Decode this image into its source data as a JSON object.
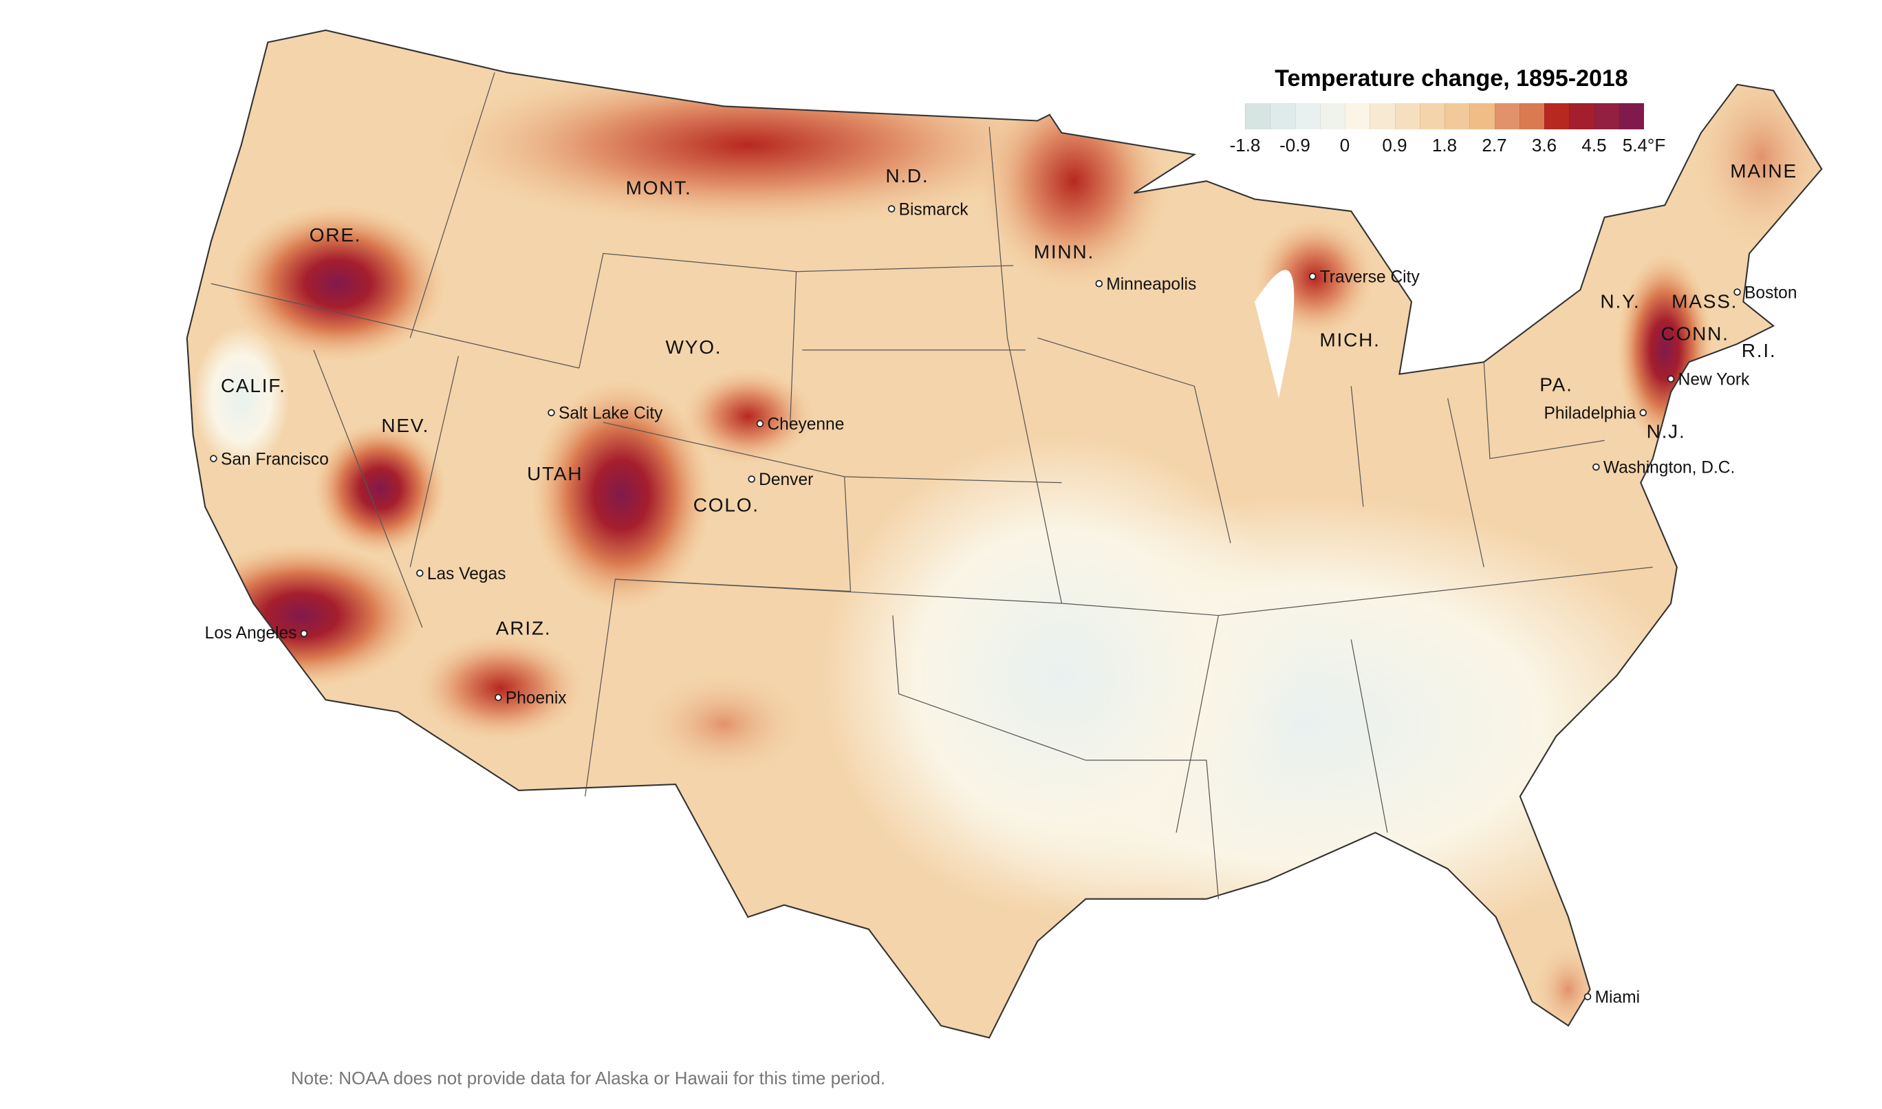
{
  "legend": {
    "title": "Temperature change, 1895-2018",
    "colors": [
      "#d6e4e2",
      "#dfeaea",
      "#e9f1f0",
      "#f0f3eb",
      "#faf5e6",
      "#f8ead2",
      "#f6dfbf",
      "#f4d4aa",
      "#f2c99a",
      "#efbd85",
      "#e2926a",
      "#da7a50",
      "#b72820",
      "#a51e2d",
      "#932040",
      "#801a4c"
    ],
    "ticks": [
      "-1.8",
      "-0.9",
      "0",
      "0.9",
      "1.8",
      "2.7",
      "3.6",
      "4.5",
      "5.4°F"
    ]
  },
  "states": [
    "MONT.",
    "N.D.",
    "MINN.",
    "ORE.",
    "WYO.",
    "CALIF.",
    "NEV.",
    "UTAH",
    "COLO.",
    "ARIZ.",
    "MICH.",
    "N.Y.",
    "MASS.",
    "CONN.",
    "R.I.",
    "PA.",
    "N.J.",
    "MAINE"
  ],
  "cities": [
    "Bismarck",
    "Minneapolis",
    "Traverse City",
    "Boston",
    "New York",
    "Philadelphia",
    "Washington, D.C.",
    "Miami",
    "Salt Lake City",
    "Cheyenne",
    "Denver",
    "San Francisco",
    "Las Vegas",
    "Los Angeles",
    "Phoenix"
  ],
  "note": "Note: NOAA does not provide data for Alaska or Hawaii for this time period."
}
